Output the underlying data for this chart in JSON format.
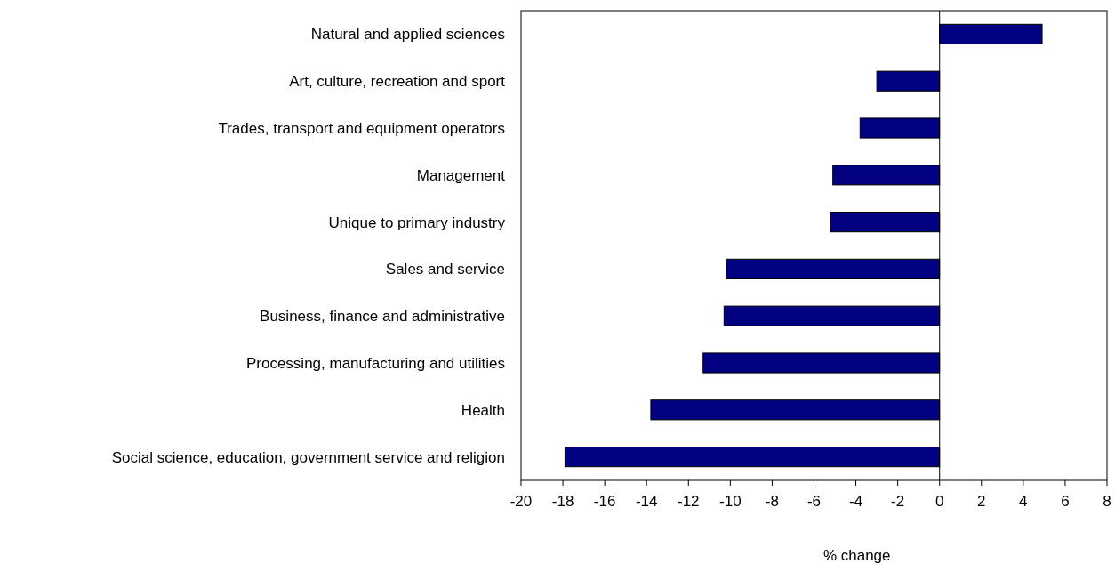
{
  "chart_data": {
    "type": "bar",
    "orientation": "horizontal",
    "xlabel": "% change",
    "categories": [
      "Natural and applied sciences",
      "Art, culture, recreation and sport",
      "Trades, transport and equipment operators",
      "Management",
      "Unique to primary industry",
      "Sales and service",
      "Business, finance and administrative",
      "Processing, manufacturing and utilities",
      "Health",
      "Social science, education, government service and religion"
    ],
    "values": [
      4.9,
      -3.0,
      -3.8,
      -5.1,
      -5.2,
      -10.2,
      -10.3,
      -11.3,
      -13.8,
      -17.9
    ],
    "color": "#000080",
    "xlim": [
      -20,
      8
    ],
    "xticks": [
      -20,
      -18,
      -16,
      -14,
      -12,
      -10,
      -8,
      -6,
      -4,
      -2,
      0,
      2,
      4,
      6,
      8
    ],
    "ylabel": null
  }
}
